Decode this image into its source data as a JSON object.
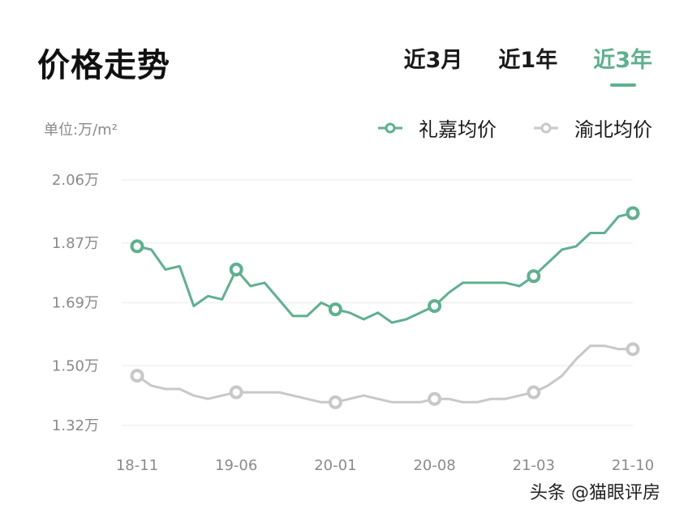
{
  "header": {
    "title": "价格走势",
    "tabs": [
      {
        "label": "近3月",
        "active": false
      },
      {
        "label": "近1年",
        "active": false
      },
      {
        "label": "近3年",
        "active": true
      }
    ]
  },
  "unit_label": "单位:万/m²",
  "legend": [
    {
      "label": "礼嘉均价",
      "color": "#5fb08e"
    },
    {
      "label": "渝北均价",
      "color": "#c8c8c8"
    }
  ],
  "watermark": "头条 @猫眼评房",
  "colors": {
    "accent": "#5fb08e",
    "secondary": "#c8c8c8",
    "grid": "#f0f0f0",
    "axis_text": "#8a8a8a"
  },
  "chart_data": {
    "type": "line",
    "title": "价格走势",
    "ylabel": "单位:万/m²",
    "xlabel": "",
    "ylim": [
      1.32,
      2.06
    ],
    "yticks": [
      "2.06万",
      "1.87万",
      "1.69万",
      "1.50万",
      "1.32万"
    ],
    "ytick_values": [
      2.06,
      1.87,
      1.69,
      1.5,
      1.32
    ],
    "xticks": [
      "18-11",
      "19-06",
      "20-01",
      "20-08",
      "21-03",
      "21-10"
    ],
    "grid": true,
    "legend_position": "top-right",
    "x": [
      "18-11",
      "18-12",
      "19-01",
      "19-02",
      "19-03",
      "19-04",
      "19-05",
      "19-06",
      "19-07",
      "19-08",
      "19-09",
      "19-10",
      "19-11",
      "19-12",
      "20-01",
      "20-02",
      "20-03",
      "20-04",
      "20-05",
      "20-06",
      "20-07",
      "20-08",
      "20-09",
      "20-10",
      "20-11",
      "20-12",
      "21-01",
      "21-02",
      "21-03",
      "21-04",
      "21-05",
      "21-06",
      "21-07",
      "21-08",
      "21-09",
      "21-10"
    ],
    "series": [
      {
        "name": "礼嘉均价",
        "color": "#5fb08e",
        "markers_at": [
          "18-11",
          "19-06",
          "20-01",
          "20-08",
          "21-03",
          "21-10"
        ],
        "values": [
          1.86,
          1.85,
          1.79,
          1.8,
          1.68,
          1.71,
          1.7,
          1.79,
          1.74,
          1.75,
          1.7,
          1.65,
          1.65,
          1.69,
          1.67,
          1.66,
          1.64,
          1.66,
          1.63,
          1.64,
          1.66,
          1.68,
          1.72,
          1.75,
          1.75,
          1.75,
          1.75,
          1.74,
          1.77,
          1.81,
          1.85,
          1.86,
          1.9,
          1.9,
          1.95,
          1.96
        ]
      },
      {
        "name": "渝北均价",
        "color": "#c8c8c8",
        "markers_at": [
          "18-11",
          "19-06",
          "20-01",
          "20-08",
          "21-03",
          "21-10"
        ],
        "values": [
          1.47,
          1.44,
          1.43,
          1.43,
          1.41,
          1.4,
          1.41,
          1.42,
          1.42,
          1.42,
          1.42,
          1.41,
          1.4,
          1.39,
          1.39,
          1.4,
          1.41,
          1.4,
          1.39,
          1.39,
          1.39,
          1.4,
          1.4,
          1.39,
          1.39,
          1.4,
          1.4,
          1.41,
          1.42,
          1.44,
          1.47,
          1.52,
          1.56,
          1.56,
          1.55,
          1.55
        ]
      }
    ]
  }
}
